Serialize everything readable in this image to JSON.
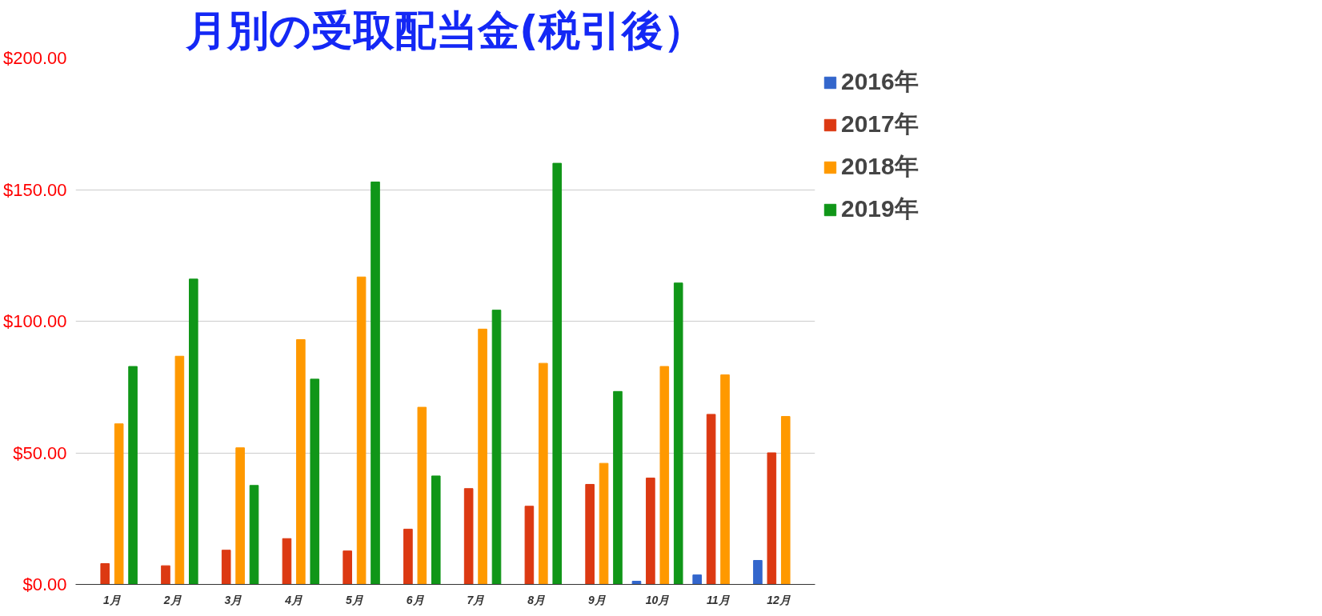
{
  "chart_data": {
    "type": "bar",
    "title": "月別の受取配当金(税引後）",
    "categories": [
      "1月",
      "2月",
      "3月",
      "4月",
      "5月",
      "6月",
      "7月",
      "8月",
      "9月",
      "10月",
      "11月",
      "12月"
    ],
    "series": [
      {
        "name": "2016年",
        "color": "#3366cc",
        "values": [
          null,
          null,
          null,
          null,
          null,
          null,
          null,
          null,
          null,
          1.2,
          3.6,
          9.1
        ]
      },
      {
        "name": "2017年",
        "color": "#dc3912",
        "values": [
          7.9,
          7.1,
          13,
          17.4,
          12.7,
          21,
          36.4,
          29.7,
          38,
          40.4,
          64.6,
          50
        ]
      },
      {
        "name": "2018年",
        "color": "#ff9900",
        "values": [
          61,
          86.7,
          51.9,
          93,
          116.8,
          67.3,
          97,
          84,
          46,
          82.8,
          79.6,
          63.8
        ]
      },
      {
        "name": "2019年",
        "color": "#109618",
        "values": [
          82.8,
          116,
          37.6,
          78,
          152.9,
          41.2,
          104.2,
          160,
          73.3,
          114.5,
          null,
          null
        ]
      }
    ],
    "ylim": [
      0,
      200
    ],
    "yticks": [
      {
        "value": 0,
        "label": "$0.00"
      },
      {
        "value": 50,
        "label": "$50.00"
      },
      {
        "value": 100,
        "label": "$100.00"
      },
      {
        "value": 150,
        "label": "$150.00"
      },
      {
        "value": 200,
        "label": "$200.00"
      }
    ],
    "grid": "y",
    "legend": "right"
  }
}
